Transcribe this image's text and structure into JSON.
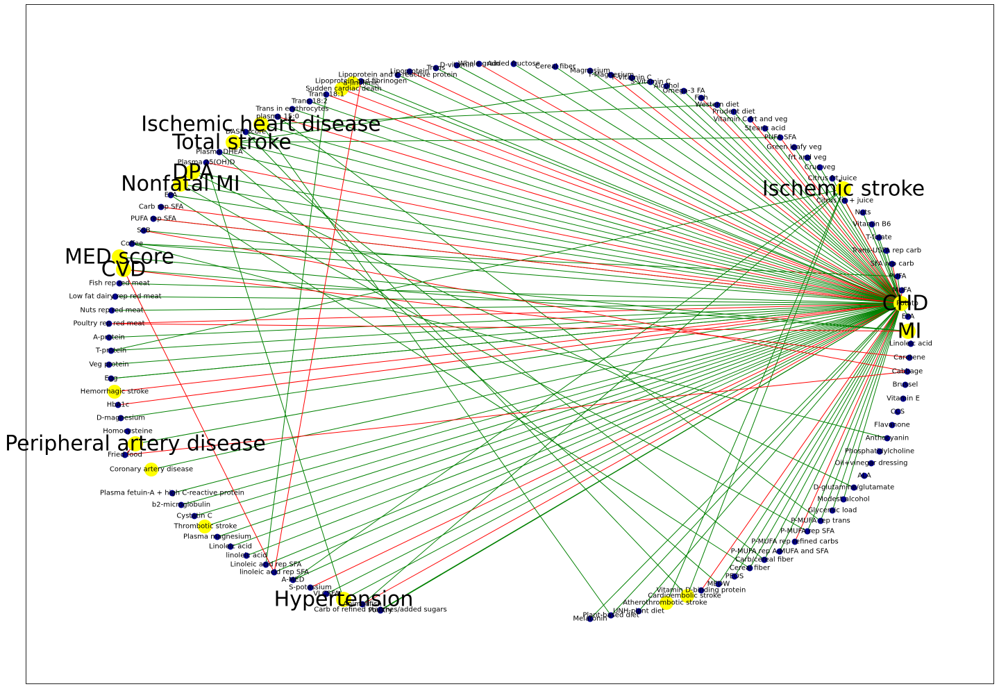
{
  "graph": {
    "colors": {
      "pos_edge": "#008000",
      "neg_edge": "#ff0000",
      "outcome_node": "#ffff00",
      "factor_node": "#00008b"
    },
    "outcomes": [
      {
        "label": "CHD"
      },
      {
        "label": "MI"
      },
      {
        "label": "Ischemic stroke"
      },
      {
        "label": "Ischemic heart disease"
      },
      {
        "label": "Total stroke"
      },
      {
        "label": "DPA"
      },
      {
        "label": "Nonfatal MI"
      },
      {
        "label": "MED score"
      },
      {
        "label": "CVD"
      },
      {
        "label": "Peripheral artery disease"
      },
      {
        "label": "Hypertension"
      },
      {
        "label": "Hemorrhagic stroke"
      },
      {
        "label": "Coronary artery disease"
      },
      {
        "label": "Thrombotic stroke"
      },
      {
        "label": "Cardioembolic stroke"
      },
      {
        "label": "Atherothrombotic stroke"
      },
      {
        "label": "Sudden cardiac death"
      },
      {
        "label": "a-linolenic"
      }
    ],
    "factors": [
      {
        "label": "Added fructose"
      },
      {
        "label": "Cereal fiber"
      },
      {
        "label": "Magnesium"
      },
      {
        "label": "T-Magnesium"
      },
      {
        "label": "F-Vitamin C"
      },
      {
        "label": "S-Vitamin C"
      },
      {
        "label": "Alcohol"
      },
      {
        "label": "Omega-3 FA"
      },
      {
        "label": "Fish"
      },
      {
        "label": "Western diet"
      },
      {
        "label": "Prudent diet"
      },
      {
        "label": "Vitamin C frt and veg"
      },
      {
        "label": "Stearic acid"
      },
      {
        "label": "PUFA SFA"
      },
      {
        "label": "Green leafy veg"
      },
      {
        "label": "frt and veg"
      },
      {
        "label": "Cruc veg"
      },
      {
        "label": "Citrus frt juice"
      },
      {
        "label": "Citrus frt + juice"
      },
      {
        "label": "Nuts"
      },
      {
        "label": "Vitamin B6"
      },
      {
        "label": "T-folate"
      },
      {
        "label": "Trans-USFA rep carb"
      },
      {
        "label": "SFA rep carb"
      },
      {
        "label": "PUFA"
      },
      {
        "label": "MUFA"
      },
      {
        "label": "Potato"
      },
      {
        "label": "EPA"
      },
      {
        "label": "Linoleic acid"
      },
      {
        "label": "Carotene"
      },
      {
        "label": "Cabbage"
      },
      {
        "label": "Brussel"
      },
      {
        "label": "Vitamin E"
      },
      {
        "label": "CCS"
      },
      {
        "label": "Flavanone"
      },
      {
        "label": "Anthocyanin"
      },
      {
        "label": "Phosphatidylcholine"
      },
      {
        "label": "Oil+vinegar dressing"
      },
      {
        "label": "ALA"
      },
      {
        "label": "D-glutamine/glutamate"
      },
      {
        "label": "Modest alcohol"
      },
      {
        "label": "Glycemic load"
      },
      {
        "label": "P-MUFA rep trans"
      },
      {
        "label": "P-MUFA rep SFA"
      },
      {
        "label": "P-MUFA rep refined carbs"
      },
      {
        "label": "P-MUFA rep A-MUFA and SFA"
      },
      {
        "label": "Carb/cereal fiber"
      },
      {
        "label": "Cereal fiber"
      },
      {
        "label": "PEOS"
      },
      {
        "label": "MEDW"
      },
      {
        "label": "Vitamin D-binding protein"
      },
      {
        "label": "UNH-plant diet"
      },
      {
        "label": "Plant-based diet"
      },
      {
        "label": "Melatonin"
      },
      {
        "label": "Carb of refined starches/added sugars"
      },
      {
        "label": "Fried food"
      },
      {
        "label": "Homocysteine"
      },
      {
        "label": "D-magnesium"
      },
      {
        "label": "HbA1c"
      },
      {
        "label": "Egg"
      },
      {
        "label": "Veg protein"
      },
      {
        "label": "T-protein"
      },
      {
        "label": "A-protein"
      },
      {
        "label": "Poultry rep red meat"
      },
      {
        "label": "Nuts rep red meat"
      },
      {
        "label": "Low fat dairy rep red meat"
      },
      {
        "label": "Fish rep red meat"
      },
      {
        "label": "Coffee"
      },
      {
        "label": "SSB"
      },
      {
        "label": "PUFA rep SFA"
      },
      {
        "label": "Carb rep SFA"
      },
      {
        "label": "EPA"
      },
      {
        "label": "Plasma 25(OH)D"
      },
      {
        "label": "Plasma DHEA"
      },
      {
        "label": "DASH score"
      },
      {
        "label": "plasma 15:0"
      },
      {
        "label": "Trans in erythrocytes"
      },
      {
        "label": "Trans 18:2"
      },
      {
        "label": "Trans 18:1"
      },
      {
        "label": "Lipoprotein and fibrinogen"
      },
      {
        "label": "Lipoprotein and C-reactive protein"
      },
      {
        "label": "Lipoprotein"
      },
      {
        "label": "Trans"
      },
      {
        "label": "D-vitamin"
      },
      {
        "label": "Whole grain"
      },
      {
        "label": "Plasma fetuin-A + high C-reactive protein"
      },
      {
        "label": "b2-microglobulin"
      },
      {
        "label": "Cystatin C"
      },
      {
        "label": "Plasma magnesium"
      },
      {
        "label": "Linoleic acid"
      },
      {
        "label": "linoleic acid"
      },
      {
        "label": "Linoleic acid rep SFA"
      },
      {
        "label": "linoleic acid rep SFA"
      },
      {
        "label": "A-MED"
      },
      {
        "label": "S-potassium"
      },
      {
        "label": "VLCSFA"
      },
      {
        "label": "Animal fish"
      },
      {
        "label": "Poultry"
      },
      {
        "label": "Red meat"
      }
    ]
  }
}
